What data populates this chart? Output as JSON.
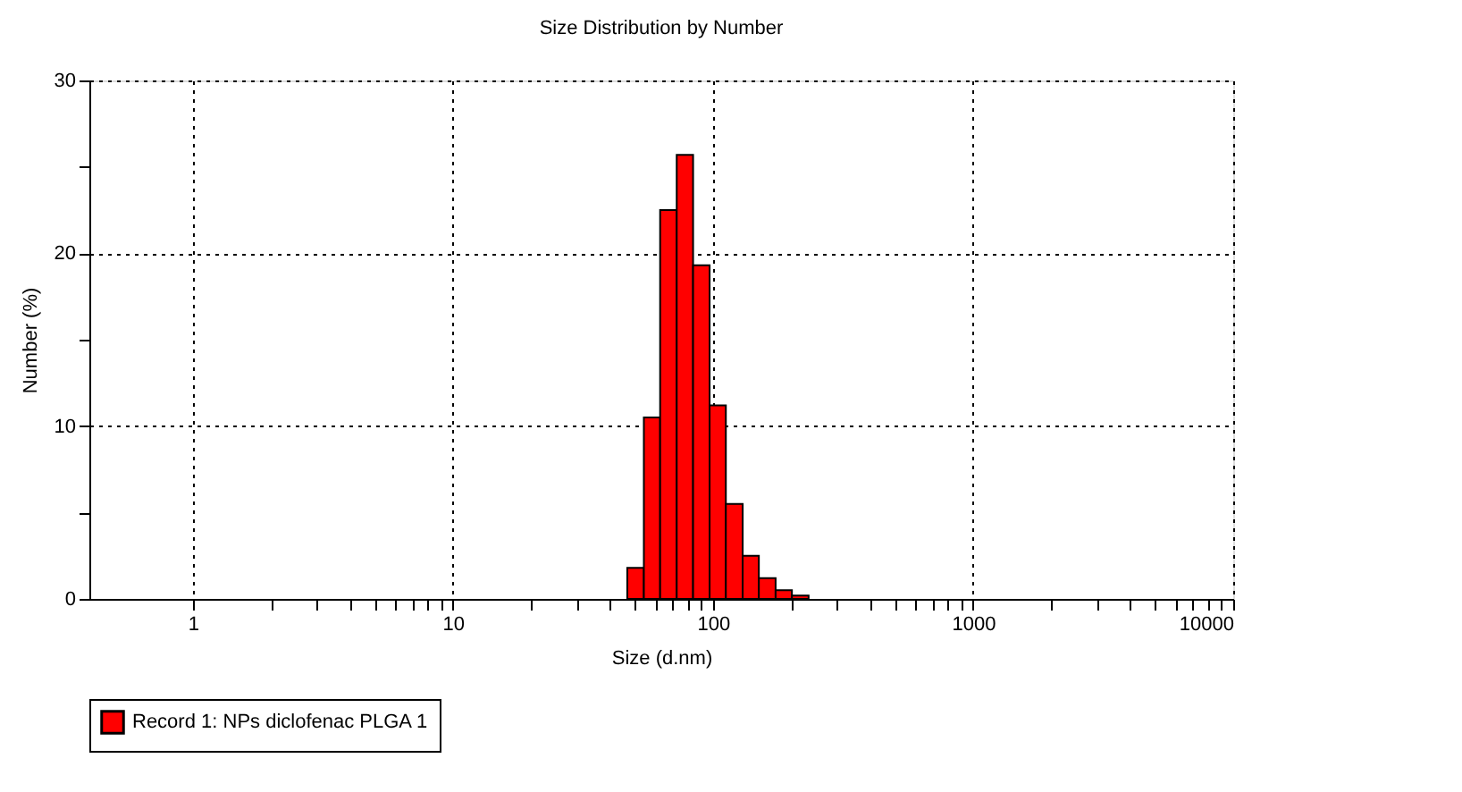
{
  "chart_data": {
    "type": "histogram",
    "title": "Size Distribution by Number",
    "xlabel": "Size (d.nm)",
    "ylabel": "Number (%)",
    "log": "x",
    "grid": true,
    "legend": "bottom",
    "bins": [
      46.8,
      54.2,
      62.6,
      72.5,
      83.8,
      97,
      112,
      130,
      150,
      174,
      201,
      233
    ],
    "series": [
      {
        "name": "Record 1: NPs diclofenac PLGA 1",
        "color": "#ff0000",
        "values": [
          1.8,
          10.5,
          22.5,
          25.7,
          19.3,
          11.2,
          5.5,
          2.5,
          1.2,
          0.5,
          0.2
        ]
      }
    ],
    "xlim": [
      0.4,
      10000
    ],
    "xticks": [
      1,
      {
        "value": 2,
        "label": null
      },
      {
        "value": 3,
        "label": null
      },
      {
        "value": 4,
        "label": null
      },
      {
        "value": 5,
        "label": null
      },
      {
        "value": 6,
        "label": null
      },
      {
        "value": 7,
        "label": null
      },
      {
        "value": 8,
        "label": null
      },
      {
        "value": 9,
        "label": null
      },
      10,
      {
        "value": 20,
        "label": null
      },
      {
        "value": 30,
        "label": null
      },
      {
        "value": 40,
        "label": null
      },
      {
        "value": 50,
        "label": null
      },
      {
        "value": 60,
        "label": null
      },
      {
        "value": 70,
        "label": null
      },
      {
        "value": 80,
        "label": null
      },
      {
        "value": 90,
        "label": null
      },
      100,
      {
        "value": 200,
        "label": null
      },
      {
        "value": 300,
        "label": null
      },
      {
        "value": 400,
        "label": null
      },
      {
        "value": 500,
        "label": null
      },
      {
        "value": 600,
        "label": null
      },
      {
        "value": 700,
        "label": null
      },
      {
        "value": 800,
        "label": null
      },
      {
        "value": 900,
        "label": null
      },
      1000,
      {
        "value": 2000,
        "label": null
      },
      {
        "value": 3000,
        "label": null
      },
      {
        "value": 4000,
        "label": null
      },
      {
        "value": 5000,
        "label": null
      },
      {
        "value": 6000,
        "label": null
      },
      {
        "value": 7000,
        "label": null
      },
      {
        "value": 8000,
        "label": null
      },
      {
        "value": 9000,
        "label": null
      },
      10000
    ],
    "ylim": [
      0,
      30
    ],
    "yticks": [
      0,
      {
        "value": 5,
        "label": null
      },
      10,
      {
        "value": 15,
        "label": null
      },
      20,
      {
        "value": 25,
        "label": null
      },
      30
    ]
  }
}
